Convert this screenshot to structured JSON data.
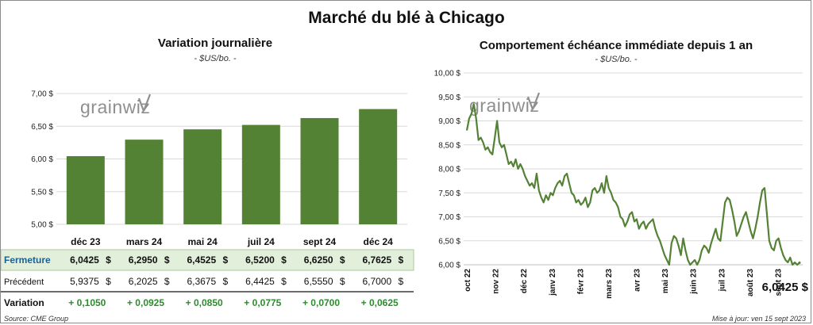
{
  "title": "Marché du blé à Chicago",
  "left_chart": {
    "title": "Variation journalière",
    "unit": "- $US/bo. -",
    "watermark": "grainwiz"
  },
  "right_chart": {
    "title": "Comportement échéance immédiate depuis 1 an",
    "unit": "- $US/bo. -",
    "watermark": "grainwiz",
    "last_value_label": "6,0425 $"
  },
  "table": {
    "rows": [
      {
        "label": "Fermeture",
        "values": [
          "6,0425",
          "6,2950",
          "6,4525",
          "6,5200",
          "6,6250",
          "6,7625"
        ],
        "suffix": "$"
      },
      {
        "label": "Précédent",
        "values": [
          "5,9375",
          "6,2025",
          "6,3675",
          "6,4425",
          "6,5550",
          "6,7000"
        ],
        "suffix": "$"
      },
      {
        "label": "Variation",
        "values": [
          "+ 0,1050",
          "+ 0,0925",
          "+ 0,0850",
          "+ 0,0775",
          "+ 0,0700",
          "+ 0,0625"
        ],
        "suffix": ""
      }
    ]
  },
  "footer": {
    "source": "Source: CME Group",
    "updated": "Mise à jour: ven 15 sept 2023"
  },
  "colors": {
    "bar": "#548235",
    "line": "#548235",
    "fermeture_bg": "#e2efda",
    "variation_text": "#2e8b2e",
    "grid": "#d9d9d9"
  },
  "chart_data": [
    {
      "type": "bar",
      "categories": [
        "déc 23",
        "mars 24",
        "mai 24",
        "juil 24",
        "sept 24",
        "déc 24"
      ],
      "values": [
        6.0425,
        6.295,
        6.4525,
        6.52,
        6.625,
        6.7625
      ],
      "ylim": [
        5.0,
        7.0
      ],
      "yticks": [
        5.0,
        5.5,
        6.0,
        6.5,
        7.0
      ],
      "ytick_labels": [
        "5,00 $",
        "5,50 $",
        "6,00 $",
        "6,50 $",
        "7,00 $"
      ],
      "title": "Variation journalière",
      "grid": true
    },
    {
      "type": "line",
      "title": "Comportement échéance immédiate depuis 1 an",
      "ylim": [
        6.0,
        10.0
      ],
      "yticks": [
        6.0,
        6.5,
        7.0,
        7.5,
        8.0,
        8.5,
        9.0,
        9.5,
        10.0
      ],
      "ytick_labels": [
        "6,00 $",
        "6,50 $",
        "7,00 $",
        "7,50 $",
        "8,00 $",
        "8,50 $",
        "9,00 $",
        "9,50 $",
        "10,00 $"
      ],
      "xticks": [
        "oct 22",
        "nov 22",
        "déc 22",
        "janv 23",
        "févr 23",
        "mars 23",
        "avr 23",
        "mai 23",
        "juin 23",
        "juil 23",
        "août 23",
        "sept 23"
      ],
      "grid": true,
      "values": [
        8.8,
        9.05,
        9.15,
        9.35,
        9.05,
        8.6,
        8.65,
        8.55,
        8.4,
        8.45,
        8.35,
        8.3,
        8.65,
        9.0,
        8.55,
        8.45,
        8.5,
        8.3,
        8.1,
        8.15,
        8.05,
        8.2,
        8.0,
        8.1,
        8.0,
        7.85,
        7.75,
        7.65,
        7.7,
        7.6,
        7.9,
        7.55,
        7.4,
        7.3,
        7.45,
        7.35,
        7.5,
        7.45,
        7.6,
        7.7,
        7.75,
        7.65,
        7.85,
        7.9,
        7.7,
        7.5,
        7.45,
        7.3,
        7.35,
        7.25,
        7.3,
        7.4,
        7.2,
        7.3,
        7.55,
        7.6,
        7.5,
        7.55,
        7.7,
        7.5,
        7.85,
        7.6,
        7.5,
        7.35,
        7.3,
        7.2,
        7.0,
        6.95,
        6.8,
        6.9,
        7.05,
        7.1,
        6.9,
        6.95,
        6.75,
        6.85,
        6.9,
        6.75,
        6.85,
        6.9,
        6.95,
        6.75,
        6.6,
        6.5,
        6.35,
        6.2,
        6.1,
        6.0,
        6.45,
        6.6,
        6.55,
        6.4,
        6.2,
        6.55,
        6.3,
        6.1,
        6.0,
        6.05,
        6.1,
        6.0,
        6.1,
        6.3,
        6.4,
        6.35,
        6.25,
        6.45,
        6.6,
        6.75,
        6.55,
        6.5,
        6.9,
        7.3,
        7.4,
        7.35,
        7.15,
        6.9,
        6.6,
        6.7,
        6.85,
        7.0,
        7.1,
        6.9,
        6.7,
        6.55,
        6.75,
        7.0,
        7.3,
        7.55,
        7.6,
        7.05,
        6.5,
        6.35,
        6.3,
        6.5,
        6.55,
        6.35,
        6.2,
        6.1,
        6.05,
        6.15,
        6.0,
        6.05,
        6.0,
        6.0425
      ]
    }
  ]
}
